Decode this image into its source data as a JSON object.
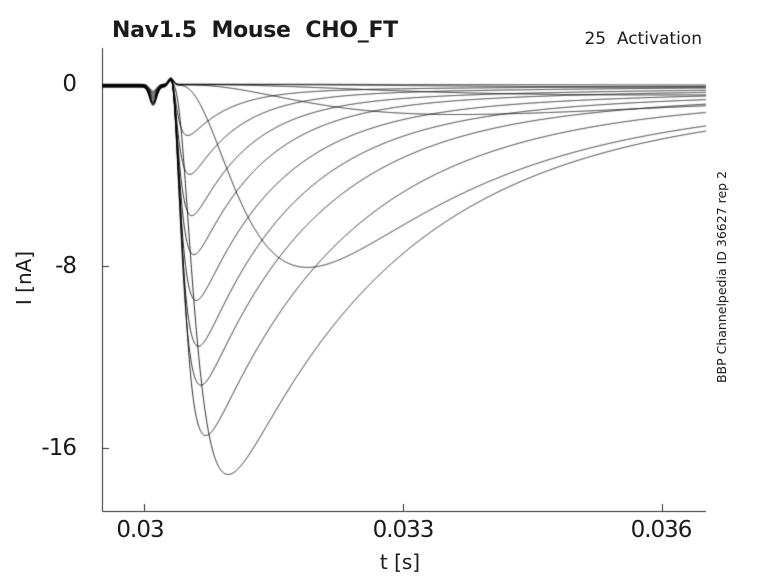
{
  "figure": {
    "title": "Nav1.5  Mouse  CHO_FT",
    "annotation": "25  Activation",
    "side_note": "BBP Channelpedia ID 36627 rep 2"
  },
  "colors": {
    "background": "#ffffff",
    "trace": "#000000",
    "axis": "#2b2b2b",
    "text": "#1a1a1a"
  },
  "chart_data": {
    "type": "line",
    "title": "Nav1.5  Mouse  CHO_FT",
    "annotation": "25  Activation",
    "side_label": "BBP Channelpedia ID 36627 rep 2",
    "xlabel": "t [s]",
    "ylabel": "I [nA]",
    "xlim": [
      0.029513,
      0.036509
    ],
    "ylim": [
      -18.74,
      1.58
    ],
    "grid": false,
    "legend": "none",
    "xticks": [
      {
        "value": 0.03,
        "label": "0.03"
      },
      {
        "value": 0.033,
        "label": "0.033"
      },
      {
        "value": 0.036,
        "label": "0.036"
      }
    ],
    "yticks": [
      {
        "value": 0,
        "label": "0"
      },
      {
        "value": -8,
        "label": "-8"
      },
      {
        "value": -16,
        "label": "-16"
      }
    ],
    "stimulus": {
      "artifact_dip_t": 0.030105,
      "artifact_blip_t": 0.03031,
      "onset_t": 0.03031
    },
    "peaks": [
      {
        "t": 0.03045,
        "i": -2.2
      },
      {
        "t": 0.03048,
        "i": -3.9
      },
      {
        "t": 0.0305,
        "i": -5.7
      },
      {
        "t": 0.03051,
        "i": -7.4
      },
      {
        "t": 0.03056,
        "i": -9.4
      },
      {
        "t": 0.03059,
        "i": -11.4
      },
      {
        "t": 0.03063,
        "i": -13.1
      },
      {
        "t": 0.03068,
        "i": -15.3
      },
      {
        "t": 0.0309,
        "i": -17.0
      },
      {
        "t": 0.03161,
        "i": -8.0
      },
      {
        "t": 0.0334,
        "i": -1.3
      },
      {
        "t": 0.0359,
        "i": -0.45
      },
      {
        "t": 0.0362,
        "i": -0.12
      },
      {
        "t": 0.0365,
        "i": -0.04
      }
    ],
    "traces": [
      {
        "A": 0.04,
        "ta": 0.003,
        "tf": 0.02,
        "fs": 0.3,
        "ts": 0.025,
        "t0": 0.0305,
        "art": 0.3,
        "off": -0.01
      },
      {
        "A": 0.12,
        "ta": 0.0025,
        "tf": 0.015,
        "fs": 0.3,
        "ts": 0.02,
        "t0": 0.0305,
        "art": 0.35,
        "off": -0.02
      },
      {
        "A": 0.45,
        "ta": 0.002,
        "tf": 0.009,
        "fs": 0.25,
        "ts": 0.014,
        "t0": 0.03046,
        "art": 0.4,
        "off": -0.03
      },
      {
        "A": 1.3,
        "ta": 0.0013,
        "tf": 0.004,
        "fs": 0.2,
        "ts": 0.009,
        "t0": 0.03042,
        "art": 0.45,
        "off": -0.04
      },
      {
        "A": 8.0,
        "ta": 0.00062,
        "tf": 0.0018,
        "fs": 0.15,
        "ts": 0.006,
        "t0": 0.03038,
        "art": 0.5,
        "off": -0.05
      },
      {
        "A": 2.2,
        "ta": 6e-05,
        "tf": 0.00045,
        "fs": 0.08,
        "ts": 0.0036,
        "t0": 0.03031,
        "art": 0.55,
        "off": -0.06
      },
      {
        "A": 3.9,
        "ta": 6.5e-05,
        "tf": 0.00055,
        "fs": 0.08,
        "ts": 0.004,
        "t0": 0.03031,
        "art": 0.6,
        "off": -0.07
      },
      {
        "A": 5.7,
        "ta": 7e-05,
        "tf": 0.00065,
        "fs": 0.09,
        "ts": 0.0044,
        "t0": 0.03031,
        "art": 0.65,
        "off": -0.08
      },
      {
        "A": 7.4,
        "ta": 7.5e-05,
        "tf": 0.00078,
        "fs": 0.09,
        "ts": 0.0048,
        "t0": 0.03031,
        "art": 0.7,
        "off": -0.09
      },
      {
        "A": 9.4,
        "ta": 8e-05,
        "tf": 0.00092,
        "fs": 0.1,
        "ts": 0.0052,
        "t0": 0.03031,
        "art": 0.72,
        "off": -0.1
      },
      {
        "A": 11.4,
        "ta": 8.5e-05,
        "tf": 0.00108,
        "fs": 0.1,
        "ts": 0.0056,
        "t0": 0.03031,
        "art": 0.74,
        "off": -0.11
      },
      {
        "A": 13.1,
        "ta": 9e-05,
        "tf": 0.00128,
        "fs": 0.1,
        "ts": 0.006,
        "t0": 0.03031,
        "art": 0.76,
        "off": -0.12
      },
      {
        "A": 15.3,
        "ta": 0.0001,
        "tf": 0.00155,
        "fs": 0.1,
        "ts": 0.0064,
        "t0": 0.03032,
        "art": 0.78,
        "off": -0.13
      },
      {
        "A": 17.0,
        "ta": 0.00018,
        "tf": 0.0019,
        "fs": 0.1,
        "ts": 0.007,
        "t0": 0.03033,
        "art": 0.8,
        "off": -0.14
      }
    ]
  }
}
